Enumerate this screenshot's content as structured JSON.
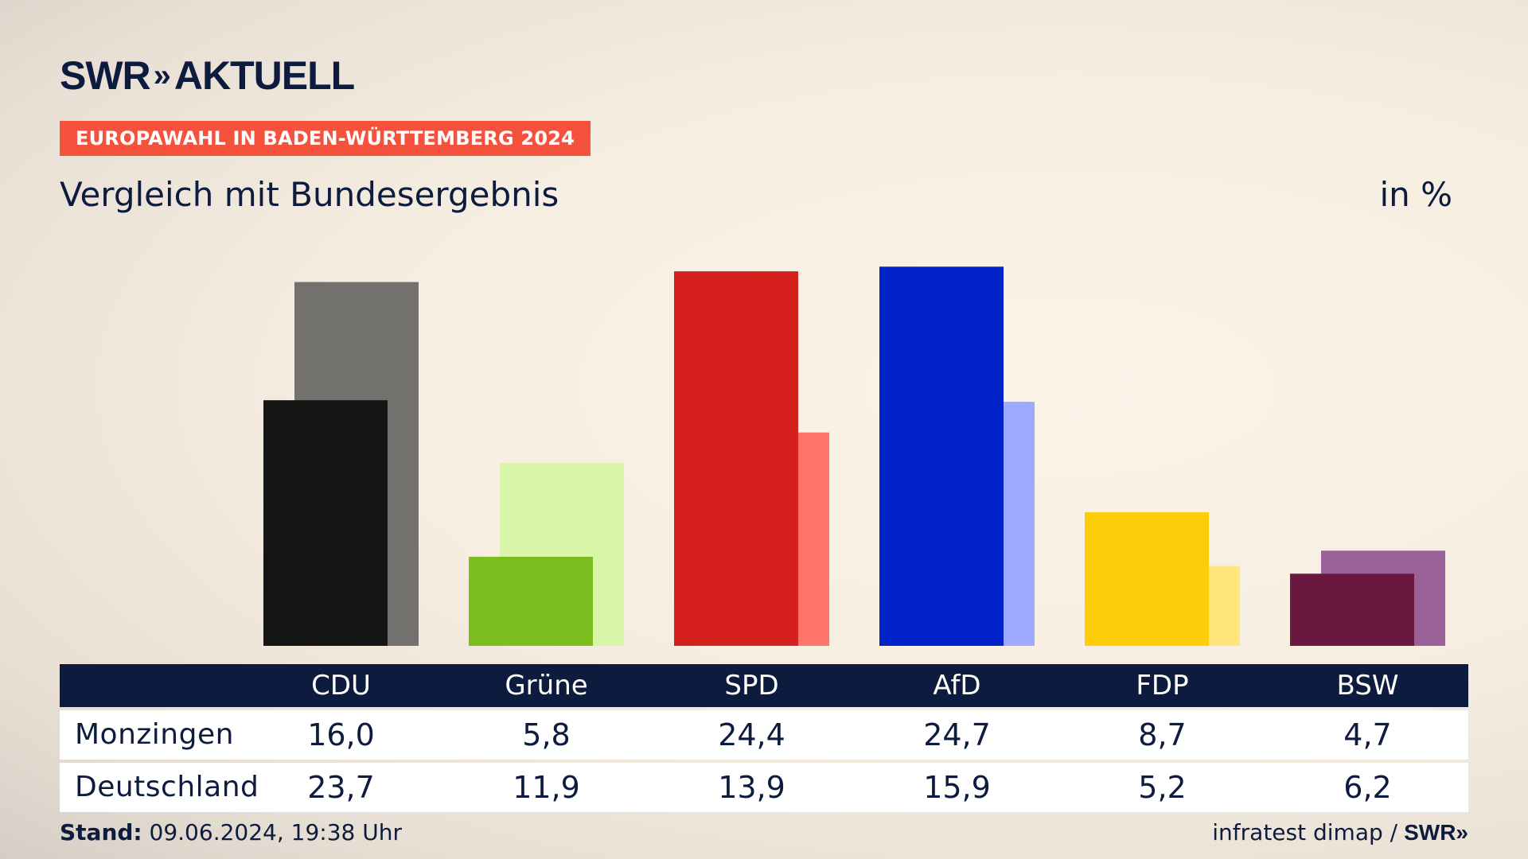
{
  "brand": {
    "name": "SWR",
    "chevrons": "»",
    "product": "AKTUELL"
  },
  "tag": "EUROPAWAHL IN BADEN-WÜRTTEMBERG 2024",
  "title": "Vergleich mit Bundesergebnis",
  "unit": "in %",
  "footer": {
    "stand_label": "Stand:",
    "stand_value": "09.06.2024, 19:38 Uhr",
    "source": "infratest dimap /",
    "source_brand": "SWR»"
  },
  "chart_data": {
    "type": "bar",
    "categories": [
      "CDU",
      "Grüne",
      "SPD",
      "AfD",
      "FDP",
      "BSW"
    ],
    "series": [
      {
        "name": "Monzingen",
        "values": [
          16.0,
          5.8,
          24.4,
          24.7,
          8.7,
          4.7
        ],
        "colors": [
          "#151515",
          "#7abd1c",
          "#d61f1f",
          "#0022c8",
          "#fecd0a",
          "#6a1840"
        ]
      },
      {
        "name": "Deutschland",
        "values": [
          23.7,
          11.9,
          13.9,
          15.9,
          5.2,
          6.2
        ],
        "colors": [
          "#73716e",
          "#d8f5a8",
          "#ff756c",
          "#9eaaff",
          "#ffe57a",
          "#9b6199"
        ]
      }
    ],
    "display_values": {
      "Monzingen": [
        "16,0",
        "5,8",
        "24,4",
        "24,7",
        "8,7",
        "4,7"
      ],
      "Deutschland": [
        "23,7",
        "11,9",
        "13,9",
        "15,9",
        "5,2",
        "6,2"
      ]
    },
    "ylim": [
      0,
      25
    ],
    "grid": false,
    "legend": "table-below"
  }
}
